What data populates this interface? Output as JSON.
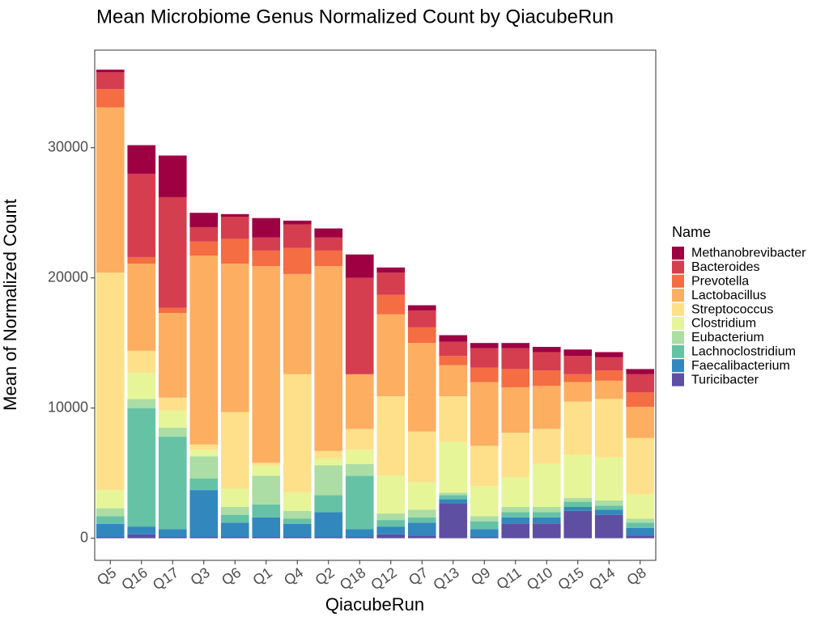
{
  "chart_data": {
    "type": "bar",
    "stacked": true,
    "title": "Mean Microbiome Genus Normalized Count by QiacubeRun",
    "xlabel": "QiacubeRun",
    "ylabel": "Mean of Normalized Count",
    "ylim": [
      -1700,
      37500
    ],
    "yticks": [
      0,
      10000,
      20000,
      30000
    ],
    "ytick_labels": [
      "0",
      "10000",
      "20000",
      "30000"
    ],
    "grid": false,
    "legend": {
      "title": "Name",
      "position": "right"
    },
    "categories": [
      "Q5",
      "Q16",
      "Q17",
      "Q3",
      "Q6",
      "Q1",
      "Q4",
      "Q2",
      "Q18",
      "Q12",
      "Q7",
      "Q13",
      "Q9",
      "Q11",
      "Q10",
      "Q15",
      "Q14",
      "Q8"
    ],
    "series": [
      {
        "name": "Turicibacter",
        "color": "#5E4FA2",
        "values": [
          100,
          300,
          100,
          100,
          100,
          100,
          100,
          100,
          100,
          300,
          200,
          2700,
          100,
          1100,
          1100,
          2100,
          1800,
          200
        ]
      },
      {
        "name": "Faecalibacterium",
        "color": "#3288BD",
        "values": [
          1000,
          600,
          600,
          3600,
          1100,
          1500,
          1000,
          1900,
          600,
          600,
          1000,
          300,
          600,
          500,
          500,
          300,
          400,
          600
        ]
      },
      {
        "name": "Lachnoclostridium",
        "color": "#66C2A5",
        "values": [
          600,
          9100,
          7100,
          900,
          600,
          1000,
          400,
          1300,
          4100,
          500,
          400,
          300,
          600,
          400,
          400,
          400,
          300,
          400
        ]
      },
      {
        "name": "Eubacterium",
        "color": "#ABDDA4",
        "values": [
          600,
          700,
          700,
          1700,
          600,
          2200,
          600,
          2300,
          900,
          500,
          600,
          200,
          400,
          400,
          400,
          300,
          400,
          300
        ]
      },
      {
        "name": "Clostridium",
        "color": "#E6F598",
        "values": [
          1400,
          2000,
          1300,
          500,
          1400,
          800,
          1400,
          500,
          1100,
          2900,
          2100,
          3900,
          2300,
          2300,
          3300,
          3300,
          3300,
          1900
        ]
      },
      {
        "name": "Streptococcus",
        "color": "#FEE08B",
        "values": [
          16700,
          1700,
          1000,
          400,
          5900,
          200,
          9100,
          600,
          1600,
          6100,
          3900,
          3500,
          3100,
          3400,
          2700,
          4100,
          4500,
          4300
        ]
      },
      {
        "name": "Lactobacillus",
        "color": "#FDAE61",
        "values": [
          12700,
          6700,
          6500,
          14500,
          11400,
          15100,
          7700,
          14200,
          4200,
          6300,
          6800,
          2400,
          4900,
          3500,
          3300,
          1500,
          1400,
          2400
        ]
      },
      {
        "name": "Prevotella",
        "color": "#F46D43",
        "values": [
          1400,
          500,
          400,
          1100,
          1900,
          1200,
          2000,
          1200,
          0,
          1500,
          1200,
          700,
          1100,
          1400,
          1200,
          600,
          800,
          1100
        ]
      },
      {
        "name": "Bacteroides",
        "color": "#D53E4F",
        "values": [
          1300,
          6400,
          8500,
          1100,
          1700,
          1000,
          1800,
          1000,
          7400,
          1700,
          1300,
          1100,
          1500,
          1600,
          1400,
          1400,
          1000,
          1400
        ]
      },
      {
        "name": "Methanobrevibacter",
        "color": "#9E0142",
        "values": [
          200,
          2200,
          3200,
          1100,
          200,
          1500,
          300,
          700,
          1800,
          400,
          400,
          500,
          400,
          400,
          400,
          500,
          400,
          400
        ]
      }
    ],
    "legend_order": [
      "Methanobrevibacter",
      "Bacteroides",
      "Prevotella",
      "Lactobacillus",
      "Streptococcus",
      "Clostridium",
      "Eubacterium",
      "Lachnoclostridium",
      "Faecalibacterium",
      "Turicibacter"
    ]
  }
}
